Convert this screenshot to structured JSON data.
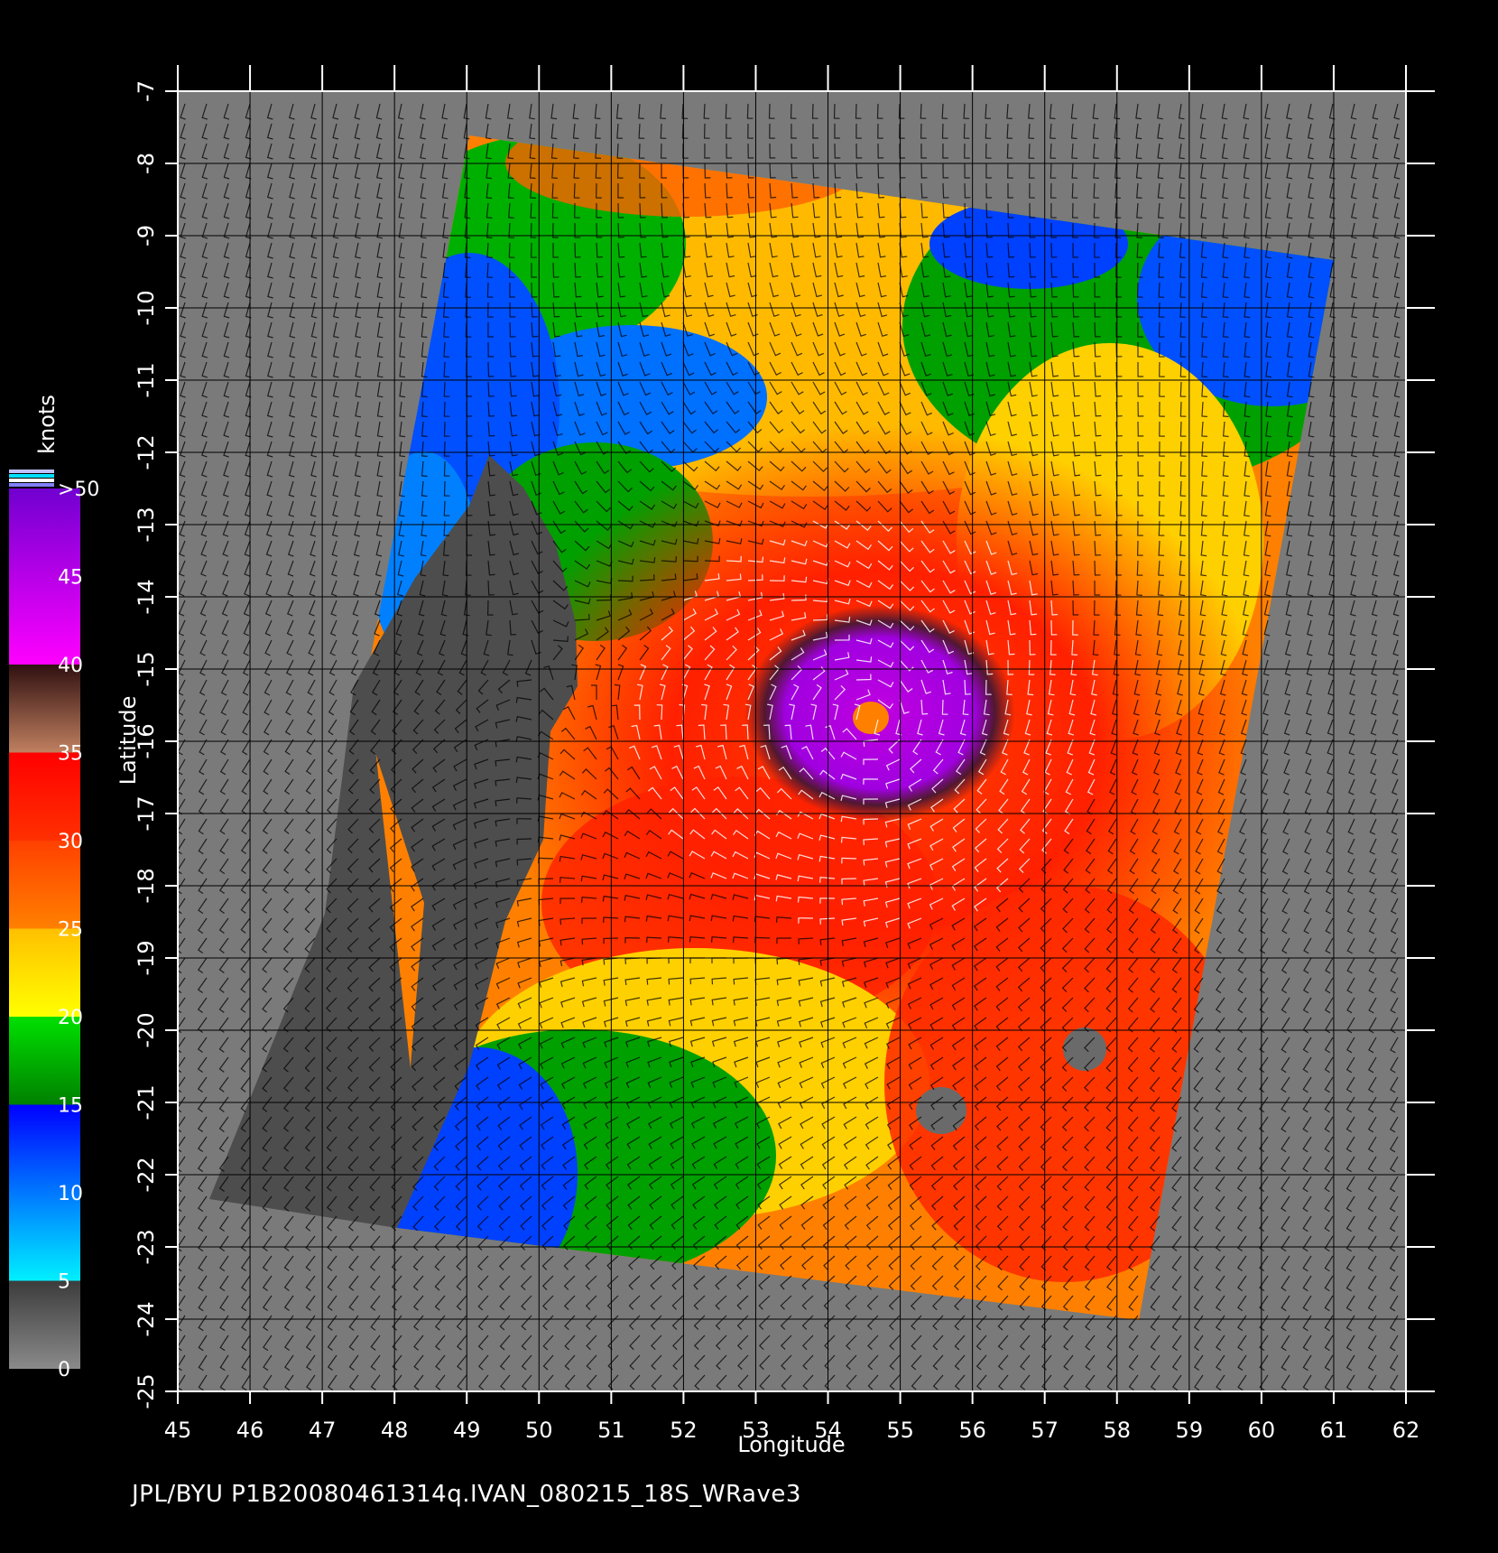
{
  "figure": {
    "caption": "JPL/BYU  P1B20080461314q.IVAN_080215_18S_WRave3",
    "xlabel": "Longitude",
    "ylabel": "Latitude",
    "colorbar_title": "knots"
  },
  "chart_data": {
    "type": "heatmap",
    "subject": "scatterometer ocean wind speed with wind barbs",
    "xlim": [
      45,
      62
    ],
    "ylim": [
      -25,
      -7
    ],
    "x_ticks": [
      "45",
      "46",
      "47",
      "48",
      "49",
      "50",
      "51",
      "52",
      "53",
      "54",
      "55",
      "56",
      "57",
      "58",
      "59",
      "60",
      "61",
      "62"
    ],
    "y_ticks": [
      "-7",
      "-8",
      "-9",
      "-10",
      "-11",
      "-12",
      "-13",
      "-14",
      "-15",
      "-16",
      "-17",
      "-18",
      "-19",
      "-20",
      "-21",
      "-22",
      "-23",
      "-24",
      "-25"
    ],
    "grid": true,
    "storm_center": {
      "lon": 54.6,
      "lat": -15.7
    },
    "colorbar": {
      "labels": [
        ">50",
        "45",
        "40",
        "35",
        "30",
        "25",
        "20",
        "15",
        "10",
        "5",
        "0"
      ],
      "bands": [
        {
          "range": [
            0,
            5
          ],
          "colors": [
            "#8a8a8a",
            "#3c3c3c"
          ]
        },
        {
          "range": [
            5,
            15
          ],
          "colors": [
            "#00f0ff",
            "#0000ff"
          ]
        },
        {
          "range": [
            15,
            20
          ],
          "colors": [
            "#008000",
            "#00e000"
          ]
        },
        {
          "range": [
            20,
            25
          ],
          "colors": [
            "#ffff00",
            "#ffc000"
          ]
        },
        {
          "range": [
            25,
            30
          ],
          "colors": [
            "#ff8000",
            "#ff4000"
          ]
        },
        {
          "range": [
            30,
            35
          ],
          "colors": [
            "#ff3000",
            "#ff0000"
          ]
        },
        {
          "range": [
            35,
            40
          ],
          "colors": [
            "#c08060",
            "#301010"
          ]
        },
        {
          "range": [
            40,
            50
          ],
          "colors": [
            "#ff00ff",
            "#7000d0"
          ]
        }
      ]
    },
    "colors": {
      "land": "#4d4d4d",
      "no_data": "#7a7a7a",
      "background": "#000000"
    }
  }
}
